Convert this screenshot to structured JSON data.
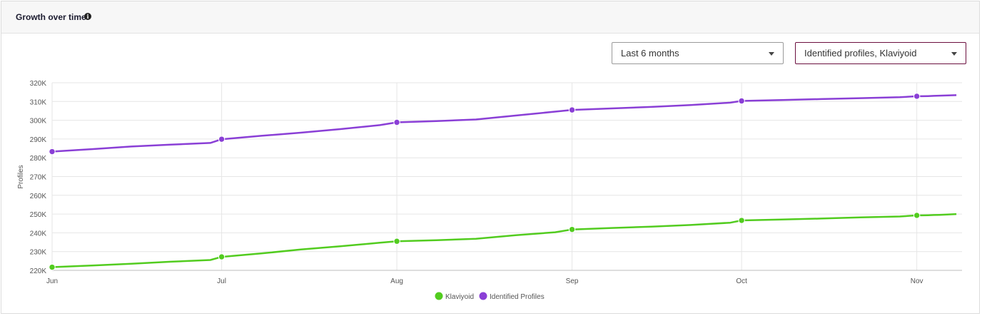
{
  "header": {
    "title": "Growth over time",
    "info_icon": "info-icon"
  },
  "controls": {
    "period_value": "Last 6 months",
    "series_value": "Identified profiles, Klaviyoid",
    "series_accent": "#6b0f3f"
  },
  "chart_data": {
    "type": "line",
    "ylabel": "Profiles",
    "ylim": [
      220000,
      320000
    ],
    "y_ticks": [
      "220K",
      "230K",
      "240K",
      "250K",
      "260K",
      "270K",
      "280K",
      "290K",
      "300K",
      "310K",
      "320K"
    ],
    "x_ticks": [
      "Jun",
      "Jul",
      "Aug",
      "Sep",
      "Oct",
      "Nov"
    ],
    "grid": true,
    "legend_position": "bottom",
    "x": [
      "2023-06-01",
      "2023-06-08",
      "2023-06-15",
      "2023-06-22",
      "2023-06-29",
      "2023-07-01",
      "2023-07-08",
      "2023-07-15",
      "2023-07-22",
      "2023-07-29",
      "2023-08-01",
      "2023-08-08",
      "2023-08-15",
      "2023-08-22",
      "2023-08-29",
      "2023-09-01",
      "2023-09-08",
      "2023-09-15",
      "2023-09-22",
      "2023-09-29",
      "2023-10-01",
      "2023-10-08",
      "2023-10-15",
      "2023-10-22",
      "2023-10-29",
      "2023-11-01",
      "2023-11-02",
      "2023-11-03",
      "2023-11-04",
      "2023-11-05",
      "2023-11-06",
      "2023-11-08"
    ],
    "marked_points": [
      "2023-06-01",
      "2023-07-01",
      "2023-08-01",
      "2023-09-01",
      "2023-10-01",
      "2023-11-01"
    ],
    "series": [
      {
        "name": "Klaviyoid",
        "color": "#52cc1f",
        "values": [
          221700,
          222600,
          223500,
          224600,
          225500,
          227200,
          229000,
          231100,
          232800,
          234700,
          235500,
          236100,
          236800,
          238700,
          240300,
          241800,
          242600,
          243300,
          244200,
          245400,
          246600,
          247100,
          247600,
          248200,
          248700,
          249300,
          249300,
          249400,
          249500,
          249600,
          249700,
          250000
        ]
      },
      {
        "name": "Identified Profiles",
        "color": "#8a3fd6",
        "values": [
          283300,
          284600,
          286000,
          287000,
          287900,
          289900,
          291700,
          293400,
          295300,
          297400,
          298900,
          299600,
          300400,
          302500,
          304600,
          305500,
          306300,
          307100,
          308100,
          309400,
          310300,
          310800,
          311300,
          311800,
          312300,
          312800,
          312800,
          312900,
          313000,
          313100,
          313200,
          313400
        ]
      }
    ]
  }
}
